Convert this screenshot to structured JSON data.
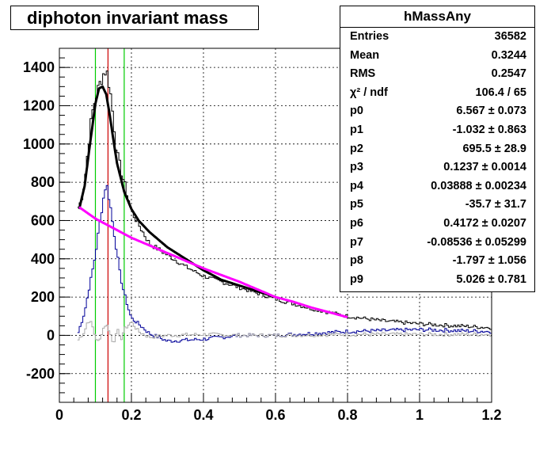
{
  "chart_data": {
    "type": "line",
    "title": "diphoton invariant mass",
    "xlim": [
      0,
      1.2
    ],
    "ylim": [
      -350,
      1500
    ],
    "x_ticks": [
      "0",
      "0.2",
      "0.4",
      "0.6",
      "0.8",
      "1",
      "1.2"
    ],
    "y_ticks": [
      "-200",
      "0",
      "200",
      "400",
      "600",
      "800",
      "1000",
      "1200",
      "1400"
    ],
    "grid": true,
    "histogram_bin_width": 0.005,
    "vertical_markers": [
      {
        "x": 0.1,
        "color": "#00cc00"
      },
      {
        "x": 0.135,
        "color": "#cc0000"
      },
      {
        "x": 0.18,
        "color": "#00cc00"
      }
    ],
    "series": [
      {
        "color": "#000000",
        "kind": "histogram",
        "x": [
          0.05,
          0.06,
          0.07,
          0.08,
          0.09,
          0.1,
          0.11,
          0.12,
          0.13,
          0.14,
          0.15,
          0.16,
          0.17,
          0.18,
          0.2,
          0.22,
          0.25,
          0.3,
          0.35,
          0.4,
          0.45,
          0.5,
          0.55,
          0.6,
          0.7,
          0.8,
          0.9,
          1.0,
          1.1,
          1.2
        ],
        "values": [
          660,
          700,
          800,
          980,
          1150,
          1240,
          1300,
          1360,
          1390,
          1300,
          1130,
          950,
          870,
          800,
          650,
          580,
          480,
          420,
          360,
          310,
          280,
          250,
          220,
          190,
          140,
          100,
          75,
          60,
          50,
          40
        ]
      },
      {
        "color": "#000099",
        "kind": "histogram",
        "x": [
          0.05,
          0.07,
          0.09,
          0.1,
          0.11,
          0.12,
          0.13,
          0.14,
          0.15,
          0.16,
          0.17,
          0.18,
          0.19,
          0.2,
          0.22,
          0.25,
          0.3,
          0.4,
          0.5,
          0.6,
          0.7,
          0.8,
          0.9,
          1.0,
          1.1,
          1.2
        ],
        "values": [
          0,
          120,
          320,
          420,
          560,
          690,
          800,
          700,
          560,
          430,
          300,
          220,
          150,
          90,
          60,
          10,
          -30,
          -20,
          0,
          0,
          10,
          20,
          25,
          30,
          25,
          20
        ]
      },
      {
        "color": "#aaaaaa",
        "kind": "histogram",
        "x": [
          0.05,
          0.07,
          0.08,
          0.09,
          0.1,
          0.11,
          0.12,
          0.13,
          0.14,
          0.15,
          0.16,
          0.17,
          0.18,
          0.2,
          0.22,
          0.25,
          0.3,
          0.4,
          0.5,
          0.6,
          0.8,
          1.0,
          1.2
        ],
        "values": [
          -30,
          20,
          80,
          60,
          -10,
          -40,
          30,
          60,
          20,
          -50,
          40,
          -30,
          30,
          70,
          20,
          -10,
          0,
          5,
          0,
          0,
          5,
          5,
          5
        ]
      },
      {
        "color": "#000000",
        "kind": "fit",
        "x": [
          0.055,
          0.07,
          0.085,
          0.1,
          0.11,
          0.12,
          0.13,
          0.14,
          0.15,
          0.16,
          0.18,
          0.2,
          0.22,
          0.25,
          0.3,
          0.35,
          0.4,
          0.45,
          0.5,
          0.55,
          0.6
        ],
        "values": [
          660,
          780,
          1000,
          1210,
          1290,
          1300,
          1260,
          1150,
          1020,
          900,
          750,
          660,
          600,
          540,
          460,
          400,
          340,
          290,
          260,
          230,
          200
        ]
      },
      {
        "color": "#ff00ff",
        "kind": "background",
        "x": [
          0.055,
          0.1,
          0.15,
          0.2,
          0.25,
          0.3,
          0.35,
          0.4,
          0.45,
          0.5,
          0.55,
          0.6,
          0.65,
          0.7,
          0.75,
          0.8
        ],
        "values": [
          670,
          610,
          560,
          510,
          470,
          430,
          390,
          350,
          315,
          280,
          240,
          200,
          175,
          145,
          120,
          95
        ]
      }
    ]
  },
  "stats": {
    "name": "hMassAny",
    "rows": [
      {
        "key": "Entries",
        "value": "36582"
      },
      {
        "key": "Mean",
        "value": "0.3244"
      },
      {
        "key": "RMS",
        "value": "0.2547"
      },
      {
        "key": "χ² / ndf",
        "value": "106.4 / 65"
      },
      {
        "key": "p0",
        "value": "6.567 ± 0.073"
      },
      {
        "key": "p1",
        "value": "-1.032 ± 0.863"
      },
      {
        "key": "p2",
        "value": "695.5 ± 28.9"
      },
      {
        "key": "p3",
        "value": "0.1237 ± 0.0014"
      },
      {
        "key": "p4",
        "value": "0.03888 ± 0.00234"
      },
      {
        "key": "p5",
        "value": "-35.7 ± 31.7"
      },
      {
        "key": "p6",
        "value": "0.4172 ± 0.0207"
      },
      {
        "key": "p7",
        "value": "-0.08536 ± 0.05299"
      },
      {
        "key": "p8",
        "value": "-1.797 ± 1.056"
      },
      {
        "key": "p9",
        "value": "5.026 ± 0.781"
      }
    ]
  }
}
